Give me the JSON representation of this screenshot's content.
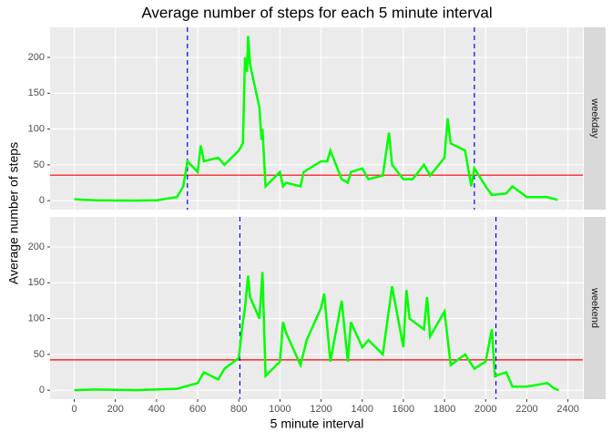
{
  "chart_data": {
    "type": "line",
    "title": "Average number of steps for each 5 minute interval",
    "x_label": "5 minute interval",
    "y_label": "Average number of steps",
    "xlim": [
      -117.5,
      2472.5
    ],
    "xticks": [
      0,
      200,
      400,
      600,
      800,
      1000,
      1200,
      1400,
      1600,
      1800,
      2000,
      2200,
      2400
    ],
    "ylim": [
      -12.5,
      242
    ],
    "yticks": [
      0,
      50,
      100,
      150,
      200
    ],
    "grid": true,
    "color": "#00ff00",
    "hline_color": "#ff0000",
    "vline_color": "#0000ff",
    "facets": [
      {
        "name": "weekday",
        "x": [
          0,
          100,
          200,
          300,
          400,
          500,
          530,
          550,
          600,
          615,
          630,
          700,
          730,
          800,
          820,
          830,
          840,
          845,
          855,
          900,
          910,
          915,
          930,
          1000,
          1015,
          1030,
          1100,
          1115,
          1200,
          1230,
          1245,
          1300,
          1330,
          1345,
          1400,
          1430,
          1500,
          1530,
          1545,
          1600,
          1645,
          1700,
          1730,
          1800,
          1815,
          1830,
          1900,
          1930,
          1945,
          2000,
          2030,
          2100,
          2130,
          2200,
          2300,
          2350
        ],
        "values": [
          2,
          0.5,
          0.2,
          0.1,
          0.5,
          5,
          20,
          55,
          40,
          77,
          55,
          60,
          50,
          70,
          80,
          200,
          180,
          230,
          190,
          130,
          85,
          100,
          20,
          40,
          20,
          25,
          20,
          40,
          55,
          55,
          70,
          30,
          25,
          40,
          45,
          30,
          35,
          95,
          50,
          30,
          30,
          50,
          35,
          60,
          115,
          80,
          70,
          20,
          45,
          20,
          8,
          10,
          20,
          5,
          5,
          1
        ],
        "vlines": [
          550,
          1945
        ],
        "hline": 35.6
      },
      {
        "name": "weekend",
        "x": [
          0,
          100,
          200,
          300,
          400,
          500,
          600,
          630,
          700,
          730,
          800,
          815,
          830,
          845,
          855,
          900,
          915,
          930,
          1000,
          1015,
          1030,
          1100,
          1130,
          1200,
          1215,
          1245,
          1300,
          1330,
          1345,
          1400,
          1430,
          1500,
          1545,
          1600,
          1615,
          1630,
          1700,
          1715,
          1730,
          1800,
          1830,
          1900,
          1945,
          2000,
          2030,
          2045,
          2100,
          2130,
          2200,
          2300,
          2330,
          2355
        ],
        "values": [
          0,
          1,
          0.5,
          0,
          1,
          2,
          10,
          25,
          15,
          30,
          45,
          85,
          115,
          160,
          130,
          100,
          165,
          20,
          40,
          95,
          80,
          35,
          70,
          115,
          135,
          40,
          125,
          40,
          95,
          60,
          70,
          50,
          145,
          60,
          140,
          100,
          85,
          130,
          75,
          110,
          35,
          50,
          30,
          40,
          85,
          20,
          25,
          5,
          5,
          10,
          3,
          0
        ],
        "vlines": [
          805,
          2050
        ],
        "hline": 42.4
      }
    ]
  }
}
